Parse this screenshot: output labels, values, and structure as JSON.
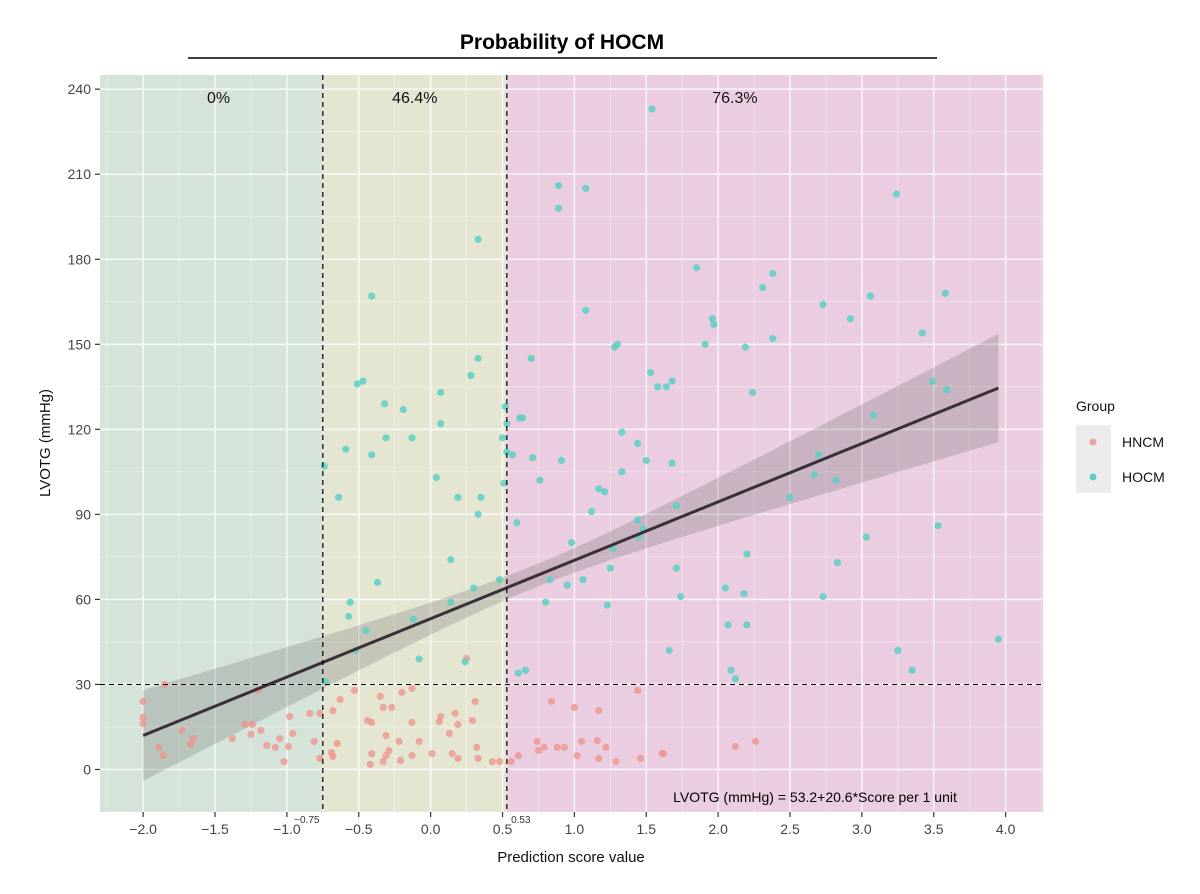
{
  "chart_data": {
    "type": "scatter",
    "title": "Probability of HOCM",
    "xlabel": "Prediction score value",
    "ylabel": "LVOTG (mmHg)",
    "xlim": [
      -2.3,
      4.26
    ],
    "ylim": [
      -15,
      245
    ],
    "xticks": [
      -2.0,
      -1.5,
      -1.0,
      -0.5,
      0.0,
      0.5,
      1.0,
      1.5,
      2.0,
      2.5,
      3.0,
      3.5,
      4.0
    ],
    "xtick_labels": [
      "−2.0",
      "−1.5",
      "−1.0",
      "−0.5",
      "0.0",
      "0.5",
      "1.0",
      "1.5",
      "2.0",
      "2.5",
      "3.0",
      "3.5",
      "4.0"
    ],
    "yticks": [
      0,
      30,
      60,
      90,
      120,
      150,
      180,
      210,
      240
    ],
    "ytick_labels": [
      "0",
      "30",
      "60",
      "90",
      "120",
      "150",
      "180",
      "210",
      "240"
    ],
    "grid": true,
    "regions": [
      {
        "from": -2.3,
        "to": -0.75,
        "label": "0%",
        "color": "#d5e3d9"
      },
      {
        "from": -0.75,
        "to": 0.53,
        "label": "46.4%",
        "color": "#e4e6d2"
      },
      {
        "from": 0.53,
        "to": 4.26,
        "label": "76.3%",
        "color": "#eacde0"
      }
    ],
    "cutoffs": [
      {
        "x": -0.75,
        "label": "−0.75"
      },
      {
        "x": 0.53,
        "label": "0.53"
      }
    ],
    "hline": 30,
    "regression": {
      "intercept": 53.2,
      "slope": 20.6,
      "x_range": [
        -2.0,
        3.95
      ],
      "ci_center": 0.7,
      "ci_min_half": 4,
      "ci_coef": 33
    },
    "annotation": "LVOTG (mmHg) = 53.2+20.6*Score per 1 unit",
    "legend": {
      "title": "Group",
      "position": "right",
      "entries": [
        "HNCM",
        "HOCM"
      ]
    },
    "series": [
      {
        "name": "HNCM",
        "color": "#ee9189",
        "points": [
          [
            -2.0,
            24
          ],
          [
            -2.0,
            18.4
          ],
          [
            -2.0,
            16.2
          ],
          [
            -1.85,
            30
          ],
          [
            -1.89,
            7.8
          ],
          [
            -1.86,
            4.9
          ],
          [
            -1.73,
            13.8
          ],
          [
            -1.67,
            8.8
          ],
          [
            -1.65,
            10.9
          ],
          [
            -1.38,
            10.9
          ],
          [
            -1.29,
            15.9
          ],
          [
            -1.24,
            15.9
          ],
          [
            -1.25,
            12.4
          ],
          [
            -1.2,
            27.9
          ],
          [
            -1.18,
            13.8
          ],
          [
            -1.14,
            8.5
          ],
          [
            -1.08,
            7.8
          ],
          [
            -1.05,
            10.9
          ],
          [
            -1.02,
            2.8
          ],
          [
            -0.99,
            8.1
          ],
          [
            -0.98,
            18.7
          ],
          [
            -0.96,
            12.7
          ],
          [
            -0.84,
            19.8
          ],
          [
            -0.81,
            9.9
          ],
          [
            -0.77,
            3.9
          ],
          [
            -0.77,
            19.8
          ],
          [
            -0.68,
            20.8
          ],
          [
            -0.65,
            9.2
          ],
          [
            -0.69,
            6.0
          ],
          [
            -0.68,
            4.6
          ],
          [
            -0.63,
            24.7
          ],
          [
            -0.53,
            27.9
          ],
          [
            -0.44,
            17.3
          ],
          [
            -0.41,
            16.6
          ],
          [
            -0.41,
            5.6
          ],
          [
            -0.42,
            1.8
          ],
          [
            -0.35,
            25.8
          ],
          [
            -0.33,
            21.9
          ],
          [
            -0.27,
            21.9
          ],
          [
            -0.31,
            12.0
          ],
          [
            -0.29,
            6.7
          ],
          [
            -0.31,
            4.9
          ],
          [
            -0.33,
            2.8
          ],
          [
            -0.22,
            9.9
          ],
          [
            -0.21,
            3.2
          ],
          [
            -0.2,
            27.2
          ],
          [
            -0.13,
            28.6
          ],
          [
            -0.13,
            16.6
          ],
          [
            -0.13,
            4.9
          ],
          [
            -0.08,
            9.9
          ],
          [
            0.01,
            5.6
          ],
          [
            0.06,
            16.9
          ],
          [
            0.07,
            18.7
          ],
          [
            0.13,
            12.7
          ],
          [
            0.15,
            5.6
          ],
          [
            0.17,
            19.8
          ],
          [
            0.19,
            15.9
          ],
          [
            0.19,
            3.9
          ],
          [
            0.25,
            39.2
          ],
          [
            0.29,
            17.3
          ],
          [
            0.31,
            24.0
          ],
          [
            0.32,
            7.8
          ],
          [
            0.33,
            3.9
          ],
          [
            0.43,
            2.8
          ],
          [
            0.48,
            2.8
          ],
          [
            0.56,
            2.8
          ],
          [
            0.61,
            4.9
          ],
          [
            0.84,
            24.0
          ],
          [
            0.74,
            9.9
          ],
          [
            0.75,
            6.7
          ],
          [
            0.79,
            7.8
          ],
          [
            0.88,
            7.8
          ],
          [
            0.93,
            7.8
          ],
          [
            1.0,
            21.9
          ],
          [
            1.02,
            4.9
          ],
          [
            1.05,
            9.9
          ],
          [
            1.16,
            10.2
          ],
          [
            1.17,
            20.8
          ],
          [
            1.17,
            3.9
          ],
          [
            1.22,
            7.8
          ],
          [
            1.29,
            2.8
          ],
          [
            1.44,
            27.9
          ],
          [
            1.46,
            3.9
          ],
          [
            1.61,
            5.6
          ],
          [
            1.62,
            5.6
          ],
          [
            2.12,
            8.1
          ],
          [
            2.26,
            9.9
          ]
        ]
      },
      {
        "name": "HOCM",
        "color": "#5ccfc4",
        "points": [
          [
            -0.74,
            107
          ],
          [
            -0.64,
            96
          ],
          [
            -0.59,
            113
          ],
          [
            -0.56,
            59
          ],
          [
            -0.57,
            54
          ],
          [
            -0.51,
            136
          ],
          [
            -0.47,
            137
          ],
          [
            -0.41,
            167
          ],
          [
            -0.41,
            111
          ],
          [
            -0.37,
            66
          ],
          [
            -0.32,
            129
          ],
          [
            -0.31,
            117
          ],
          [
            -0.19,
            127
          ],
          [
            -0.13,
            117
          ],
          [
            -0.12,
            53
          ],
          [
            -0.08,
            39
          ],
          [
            0.04,
            103
          ],
          [
            0.07,
            133
          ],
          [
            0.07,
            122
          ],
          [
            0.19,
            96
          ],
          [
            0.14,
            74
          ],
          [
            0.14,
            59
          ],
          [
            0.24,
            38
          ],
          [
            0.28,
            139
          ],
          [
            0.3,
            64
          ],
          [
            0.33,
            187
          ],
          [
            0.33,
            145
          ],
          [
            0.33,
            90
          ],
          [
            0.35,
            96
          ],
          [
            0.48,
            67
          ],
          [
            0.5,
            117
          ],
          [
            0.51,
            101
          ],
          [
            0.52,
            128
          ],
          [
            0.53,
            122
          ],
          [
            0.53,
            112
          ],
          [
            -0.73,
            31
          ],
          [
            -0.45,
            49
          ],
          [
            -0.52,
            42
          ],
          [
            0.57,
            111
          ],
          [
            0.6,
            87
          ],
          [
            0.62,
            124
          ],
          [
            0.64,
            124
          ],
          [
            0.61,
            34
          ],
          [
            0.66,
            35
          ],
          [
            0.7,
            145
          ],
          [
            0.71,
            110
          ],
          [
            0.76,
            102
          ],
          [
            0.8,
            59
          ],
          [
            0.83,
            67
          ],
          [
            0.89,
            198
          ],
          [
            0.89,
            206
          ],
          [
            0.91,
            109
          ],
          [
            0.95,
            65
          ],
          [
            0.98,
            80
          ],
          [
            1.06,
            67
          ],
          [
            1.08,
            205
          ],
          [
            1.08,
            162
          ],
          [
            1.12,
            91
          ],
          [
            1.17,
            99
          ],
          [
            1.21,
            98
          ],
          [
            1.23,
            58
          ],
          [
            1.25,
            71
          ],
          [
            1.28,
            149
          ],
          [
            1.3,
            150
          ],
          [
            1.27,
            78
          ],
          [
            1.33,
            119
          ],
          [
            1.33,
            105
          ],
          [
            1.44,
            115
          ],
          [
            1.44,
            88
          ],
          [
            1.45,
            82
          ],
          [
            1.48,
            85
          ],
          [
            1.5,
            109
          ],
          [
            1.53,
            140
          ],
          [
            1.54,
            233
          ],
          [
            1.58,
            135
          ],
          [
            1.64,
            135
          ],
          [
            1.66,
            42
          ],
          [
            1.68,
            137
          ],
          [
            1.68,
            108
          ],
          [
            1.71,
            93
          ],
          [
            1.71,
            71
          ],
          [
            1.74,
            61
          ],
          [
            1.85,
            177
          ],
          [
            1.91,
            150
          ],
          [
            1.96,
            159
          ],
          [
            1.97,
            157
          ],
          [
            2.05,
            64
          ],
          [
            2.07,
            51
          ],
          [
            2.09,
            35
          ],
          [
            2.12,
            32
          ],
          [
            2.18,
            62
          ],
          [
            2.19,
            149
          ],
          [
            2.2,
            76
          ],
          [
            2.2,
            51
          ],
          [
            2.24,
            133
          ],
          [
            2.31,
            170
          ],
          [
            2.38,
            175
          ],
          [
            2.38,
            152
          ],
          [
            2.5,
            96
          ],
          [
            2.67,
            104
          ],
          [
            2.7,
            111
          ],
          [
            2.73,
            164
          ],
          [
            2.73,
            61
          ],
          [
            2.82,
            102
          ],
          [
            2.83,
            73
          ],
          [
            2.92,
            159
          ],
          [
            3.03,
            82
          ],
          [
            3.06,
            167
          ],
          [
            3.08,
            125
          ],
          [
            3.24,
            203
          ],
          [
            3.25,
            42
          ],
          [
            3.35,
            35
          ],
          [
            3.42,
            154
          ],
          [
            3.49,
            137
          ],
          [
            3.53,
            86
          ],
          [
            3.58,
            168
          ],
          [
            3.59,
            134
          ],
          [
            3.95,
            46
          ]
        ]
      }
    ]
  }
}
